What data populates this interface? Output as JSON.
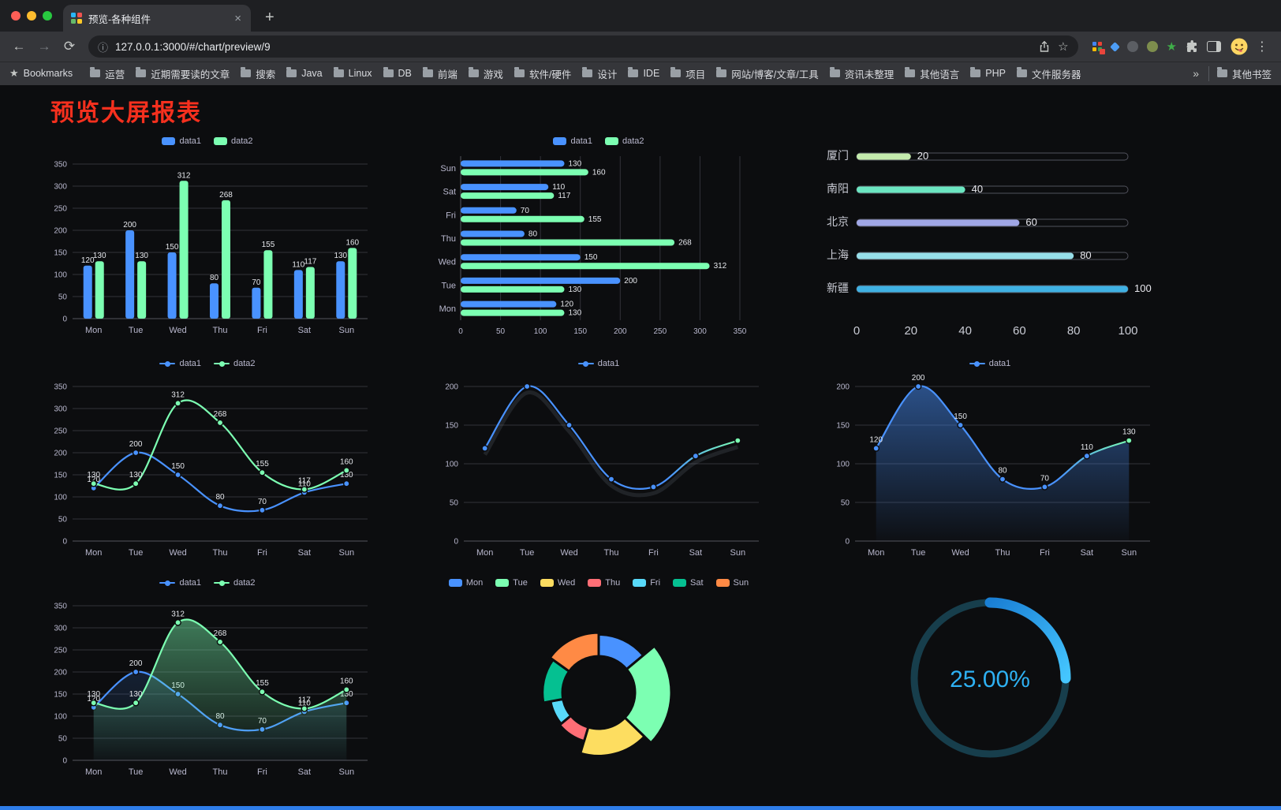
{
  "window": {
    "tab_title": "预览-各种组件",
    "url": "127.0.0.1:3000/#/chart/preview/9"
  },
  "icons": {
    "back": "←",
    "forward": "→",
    "reload": "⟳",
    "info": "ⓘ",
    "star": "☆",
    "new_tab": "+",
    "close_tab": "×",
    "menu": "⋮",
    "bookmarks_star": "★",
    "overflow": "»"
  },
  "bookmarks": {
    "label": "Bookmarks",
    "items": [
      "运营",
      "近期需要读的文章",
      "搜索",
      "Java",
      "Linux",
      "DB",
      "前端",
      "游戏",
      "软件/硬件",
      "设计",
      "IDE",
      "项目",
      "网站/博客/文章/工具",
      "资讯未整理",
      "其他语言",
      "PHP",
      "文件服务器"
    ],
    "other_label": "其他书签"
  },
  "page": {
    "title": "预览大屏报表",
    "title_color": "#f5301e",
    "scrollbar_color": "#2e7de9",
    "background": "#0c0d0f"
  },
  "colors": {
    "data1_blue": "#4992ff",
    "data2_green": "#7cffb2",
    "axis_text": "#b9b8ce",
    "grid_line": "#32323a"
  },
  "chart_data": [
    {
      "id": "bar-vertical",
      "type": "bar",
      "categories": [
        "Mon",
        "Tue",
        "Wed",
        "Thu",
        "Fri",
        "Sat",
        "Sun"
      ],
      "series": [
        {
          "name": "data1",
          "color": "#4992ff",
          "values": [
            120,
            200,
            150,
            80,
            70,
            110,
            130
          ]
        },
        {
          "name": "data2",
          "color": "#7cffb2",
          "values": [
            130,
            130,
            312,
            268,
            155,
            117,
            160
          ]
        }
      ],
      "ylim": [
        0,
        350
      ],
      "yticks": [
        0,
        50,
        100,
        150,
        200,
        250,
        300,
        350
      ],
      "labels": true,
      "legend_position": "top"
    },
    {
      "id": "bar-horizontal",
      "type": "bar-horizontal",
      "categories": [
        "Mon",
        "Tue",
        "Wed",
        "Thu",
        "Fri",
        "Sat",
        "Sun"
      ],
      "series": [
        {
          "name": "data1",
          "color": "#4992ff",
          "values": [
            120,
            200,
            150,
            80,
            70,
            110,
            130
          ]
        },
        {
          "name": "data2",
          "color": "#7cffb2",
          "values": [
            130,
            130,
            312,
            268,
            155,
            117,
            160
          ]
        }
      ],
      "xlim": [
        0,
        350
      ],
      "xticks": [
        0,
        50,
        100,
        150,
        200,
        250,
        300,
        350
      ],
      "labels": true,
      "legend_position": "top"
    },
    {
      "id": "progress-bars",
      "type": "progress",
      "rows": [
        {
          "label": "厦门",
          "value": 20,
          "color": "#c4ebad"
        },
        {
          "label": "南阳",
          "value": 40,
          "color": "#6be6c1"
        },
        {
          "label": "北京",
          "value": 60,
          "color": "#a0a7e6"
        },
        {
          "label": "上海",
          "value": 80,
          "color": "#96dee8"
        },
        {
          "label": "新疆",
          "value": 100,
          "color": "#3fb1e3"
        }
      ],
      "xlim": [
        0,
        100
      ],
      "xticks": [
        0,
        20,
        40,
        60,
        80,
        100
      ]
    },
    {
      "id": "line-two",
      "type": "line",
      "categories": [
        "Mon",
        "Tue",
        "Wed",
        "Thu",
        "Fri",
        "Sat",
        "Sun"
      ],
      "series": [
        {
          "name": "data1",
          "color": "#4992ff",
          "values": [
            120,
            200,
            150,
            80,
            70,
            110,
            130
          ]
        },
        {
          "name": "data2",
          "color": "#7cffb2",
          "values": [
            130,
            130,
            312,
            268,
            155,
            117,
            160
          ]
        }
      ],
      "ylim": [
        0,
        350
      ],
      "yticks": [
        0,
        50,
        100,
        150,
        200,
        250,
        300,
        350
      ],
      "labels": true,
      "legend_position": "top"
    },
    {
      "id": "line-gradient",
      "type": "line",
      "categories": [
        "Mon",
        "Tue",
        "Wed",
        "Thu",
        "Fri",
        "Sat",
        "Sun"
      ],
      "series": [
        {
          "name": "data1",
          "color": "#4992ff",
          "gradient": [
            "#4992ff",
            "#7cffb2"
          ],
          "shadow": true,
          "values": [
            120,
            200,
            150,
            80,
            70,
            110,
            130
          ]
        }
      ],
      "ylim": [
        0,
        200
      ],
      "yticks": [
        0,
        50,
        100,
        150,
        200
      ],
      "labels": false,
      "legend_position": "top"
    },
    {
      "id": "area-gradient",
      "type": "line",
      "categories": [
        "Mon",
        "Tue",
        "Wed",
        "Thu",
        "Fri",
        "Sat",
        "Sun"
      ],
      "series": [
        {
          "name": "data1",
          "color": "#4992ff",
          "gradient": [
            "#4992ff",
            "#7cffb2"
          ],
          "area": 0.5,
          "values": [
            120,
            200,
            150,
            80,
            70,
            110,
            130
          ]
        }
      ],
      "ylim": [
        0,
        200
      ],
      "yticks": [
        0,
        50,
        100,
        150,
        200
      ],
      "labels": true,
      "legend_position": "top"
    },
    {
      "id": "line-area-two",
      "type": "line",
      "categories": [
        "Mon",
        "Tue",
        "Wed",
        "Thu",
        "Fri",
        "Sat",
        "Sun"
      ],
      "series": [
        {
          "name": "data1",
          "color": "#4992ff",
          "area": 0.15,
          "values": [
            120,
            200,
            150,
            80,
            70,
            110,
            130
          ]
        },
        {
          "name": "data2",
          "color": "#7cffb2",
          "area": 0.45,
          "values": [
            130,
            130,
            312,
            268,
            155,
            117,
            160
          ]
        }
      ],
      "ylim": [
        0,
        350
      ],
      "yticks": [
        0,
        50,
        100,
        150,
        200,
        250,
        300,
        350
      ],
      "labels": true,
      "legend_position": "top"
    },
    {
      "id": "rose-pie",
      "type": "pie",
      "rose": true,
      "items": [
        {
          "name": "Mon",
          "value": 120,
          "color": "#4992ff"
        },
        {
          "name": "Tue",
          "value": 200,
          "color": "#7cffb2"
        },
        {
          "name": "Wed",
          "value": 150,
          "color": "#fddd60"
        },
        {
          "name": "Thu",
          "value": 80,
          "color": "#ff6e76"
        },
        {
          "name": "Fri",
          "value": 70,
          "color": "#58d9f9"
        },
        {
          "name": "Sat",
          "value": 110,
          "color": "#05c091"
        },
        {
          "name": "Sun",
          "value": 130,
          "color": "#ff8a45"
        }
      ],
      "legend_position": "top"
    },
    {
      "id": "gauge",
      "type": "gauge",
      "percent": 25,
      "label": "25.00%",
      "color": "#2eb1f3",
      "track_color": "#173e4c"
    }
  ]
}
